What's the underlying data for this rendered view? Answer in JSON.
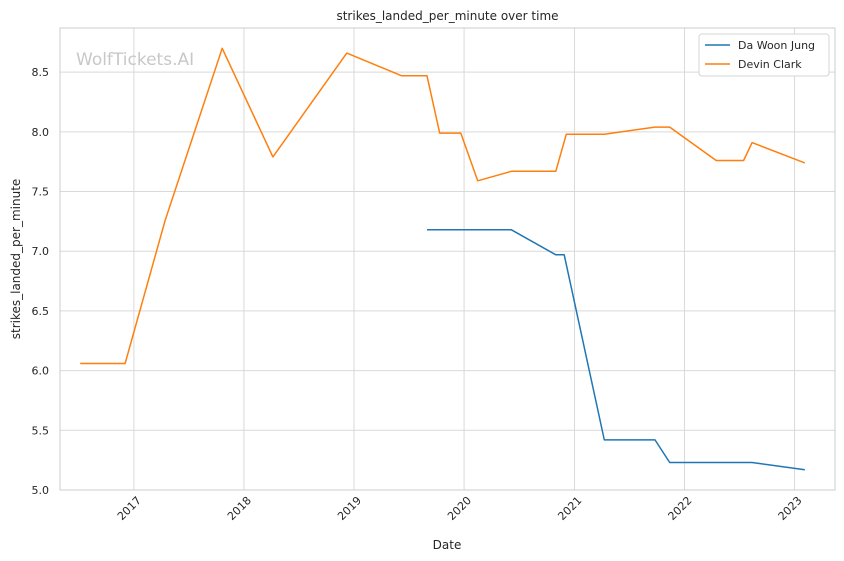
{
  "chart_data": {
    "type": "line",
    "title": "strikes_landed_per_minute over time",
    "xlabel": "Date",
    "ylabel": "strikes_landed_per_minute",
    "watermark": "WolfTickets.AI",
    "xlim": [
      "2016-05-01",
      "2023-05-15"
    ],
    "ylim": [
      5.0,
      8.87
    ],
    "x_ticks": [
      "2017-01-01",
      "2018-01-01",
      "2019-01-01",
      "2020-01-01",
      "2021-01-01",
      "2022-01-01",
      "2023-01-01"
    ],
    "x_tick_labels": [
      "2017",
      "2018",
      "2019",
      "2020",
      "2021",
      "2022",
      "2023"
    ],
    "y_ticks": [
      5.0,
      5.5,
      6.0,
      6.5,
      7.0,
      7.5,
      8.0,
      8.5
    ],
    "y_tick_labels": [
      "5.0",
      "5.5",
      "6.0",
      "6.5",
      "7.0",
      "7.5",
      "8.0",
      "8.5"
    ],
    "grid": true,
    "legend_position": "top-right",
    "series": [
      {
        "name": "Da Woon Jung",
        "color": "#1f77b4",
        "points": [
          [
            "2019-08-31",
            7.18
          ],
          [
            "2020-06-06",
            7.18
          ],
          [
            "2020-10-31",
            6.97
          ],
          [
            "2020-11-28",
            6.97
          ],
          [
            "2021-04-10",
            5.42
          ],
          [
            "2021-09-25",
            5.42
          ],
          [
            "2021-11-13",
            5.23
          ],
          [
            "2022-08-13",
            5.23
          ],
          [
            "2023-02-04",
            5.17
          ]
        ]
      },
      {
        "name": "Devin Clark",
        "color": "#ff7f0e",
        "points": [
          [
            "2016-07-07",
            6.06
          ],
          [
            "2016-12-03",
            6.06
          ],
          [
            "2017-04-15",
            7.26
          ],
          [
            "2017-10-21",
            8.7
          ],
          [
            "2018-04-07",
            7.79
          ],
          [
            "2018-12-08",
            8.66
          ],
          [
            "2019-06-08",
            8.47
          ],
          [
            "2019-08-31",
            8.47
          ],
          [
            "2019-10-12",
            7.99
          ],
          [
            "2019-12-21",
            7.99
          ],
          [
            "2020-02-15",
            7.59
          ],
          [
            "2020-06-06",
            7.67
          ],
          [
            "2020-10-31",
            7.67
          ],
          [
            "2020-12-05",
            7.98
          ],
          [
            "2021-04-10",
            7.98
          ],
          [
            "2021-09-25",
            8.04
          ],
          [
            "2021-11-13",
            8.04
          ],
          [
            "2022-04-16",
            7.76
          ],
          [
            "2022-07-16",
            7.76
          ],
          [
            "2022-08-13",
            7.91
          ],
          [
            "2023-02-04",
            7.74
          ]
        ]
      }
    ]
  }
}
